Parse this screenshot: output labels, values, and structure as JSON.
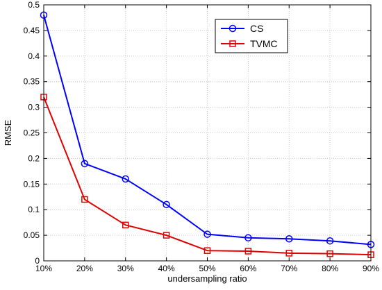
{
  "chart_data": {
    "type": "line",
    "xlabel": "undersampling ratio",
    "ylabel": "RMSE",
    "x": [
      "10%",
      "20%",
      "30%",
      "40%",
      "50%",
      "60%",
      "70%",
      "80%",
      "90%"
    ],
    "ylim": [
      0,
      0.5
    ],
    "yticks": [
      "0",
      "0.05",
      "0.1",
      "0.15",
      "0.2",
      "0.25",
      "0.3",
      "0.35",
      "0.4",
      "0.45",
      "0.5"
    ],
    "grid": true,
    "legend_position": "top-right",
    "series": [
      {
        "name": "CS",
        "marker": "circle",
        "color": "#0000ff",
        "values": [
          0.48,
          0.19,
          0.16,
          0.11,
          0.052,
          0.045,
          0.043,
          0.039,
          0.032
        ]
      },
      {
        "name": "TVMC",
        "marker": "square",
        "color": "#e00000",
        "values": [
          0.32,
          0.12,
          0.07,
          0.05,
          0.02,
          0.019,
          0.015,
          0.014,
          0.012
        ]
      }
    ]
  }
}
